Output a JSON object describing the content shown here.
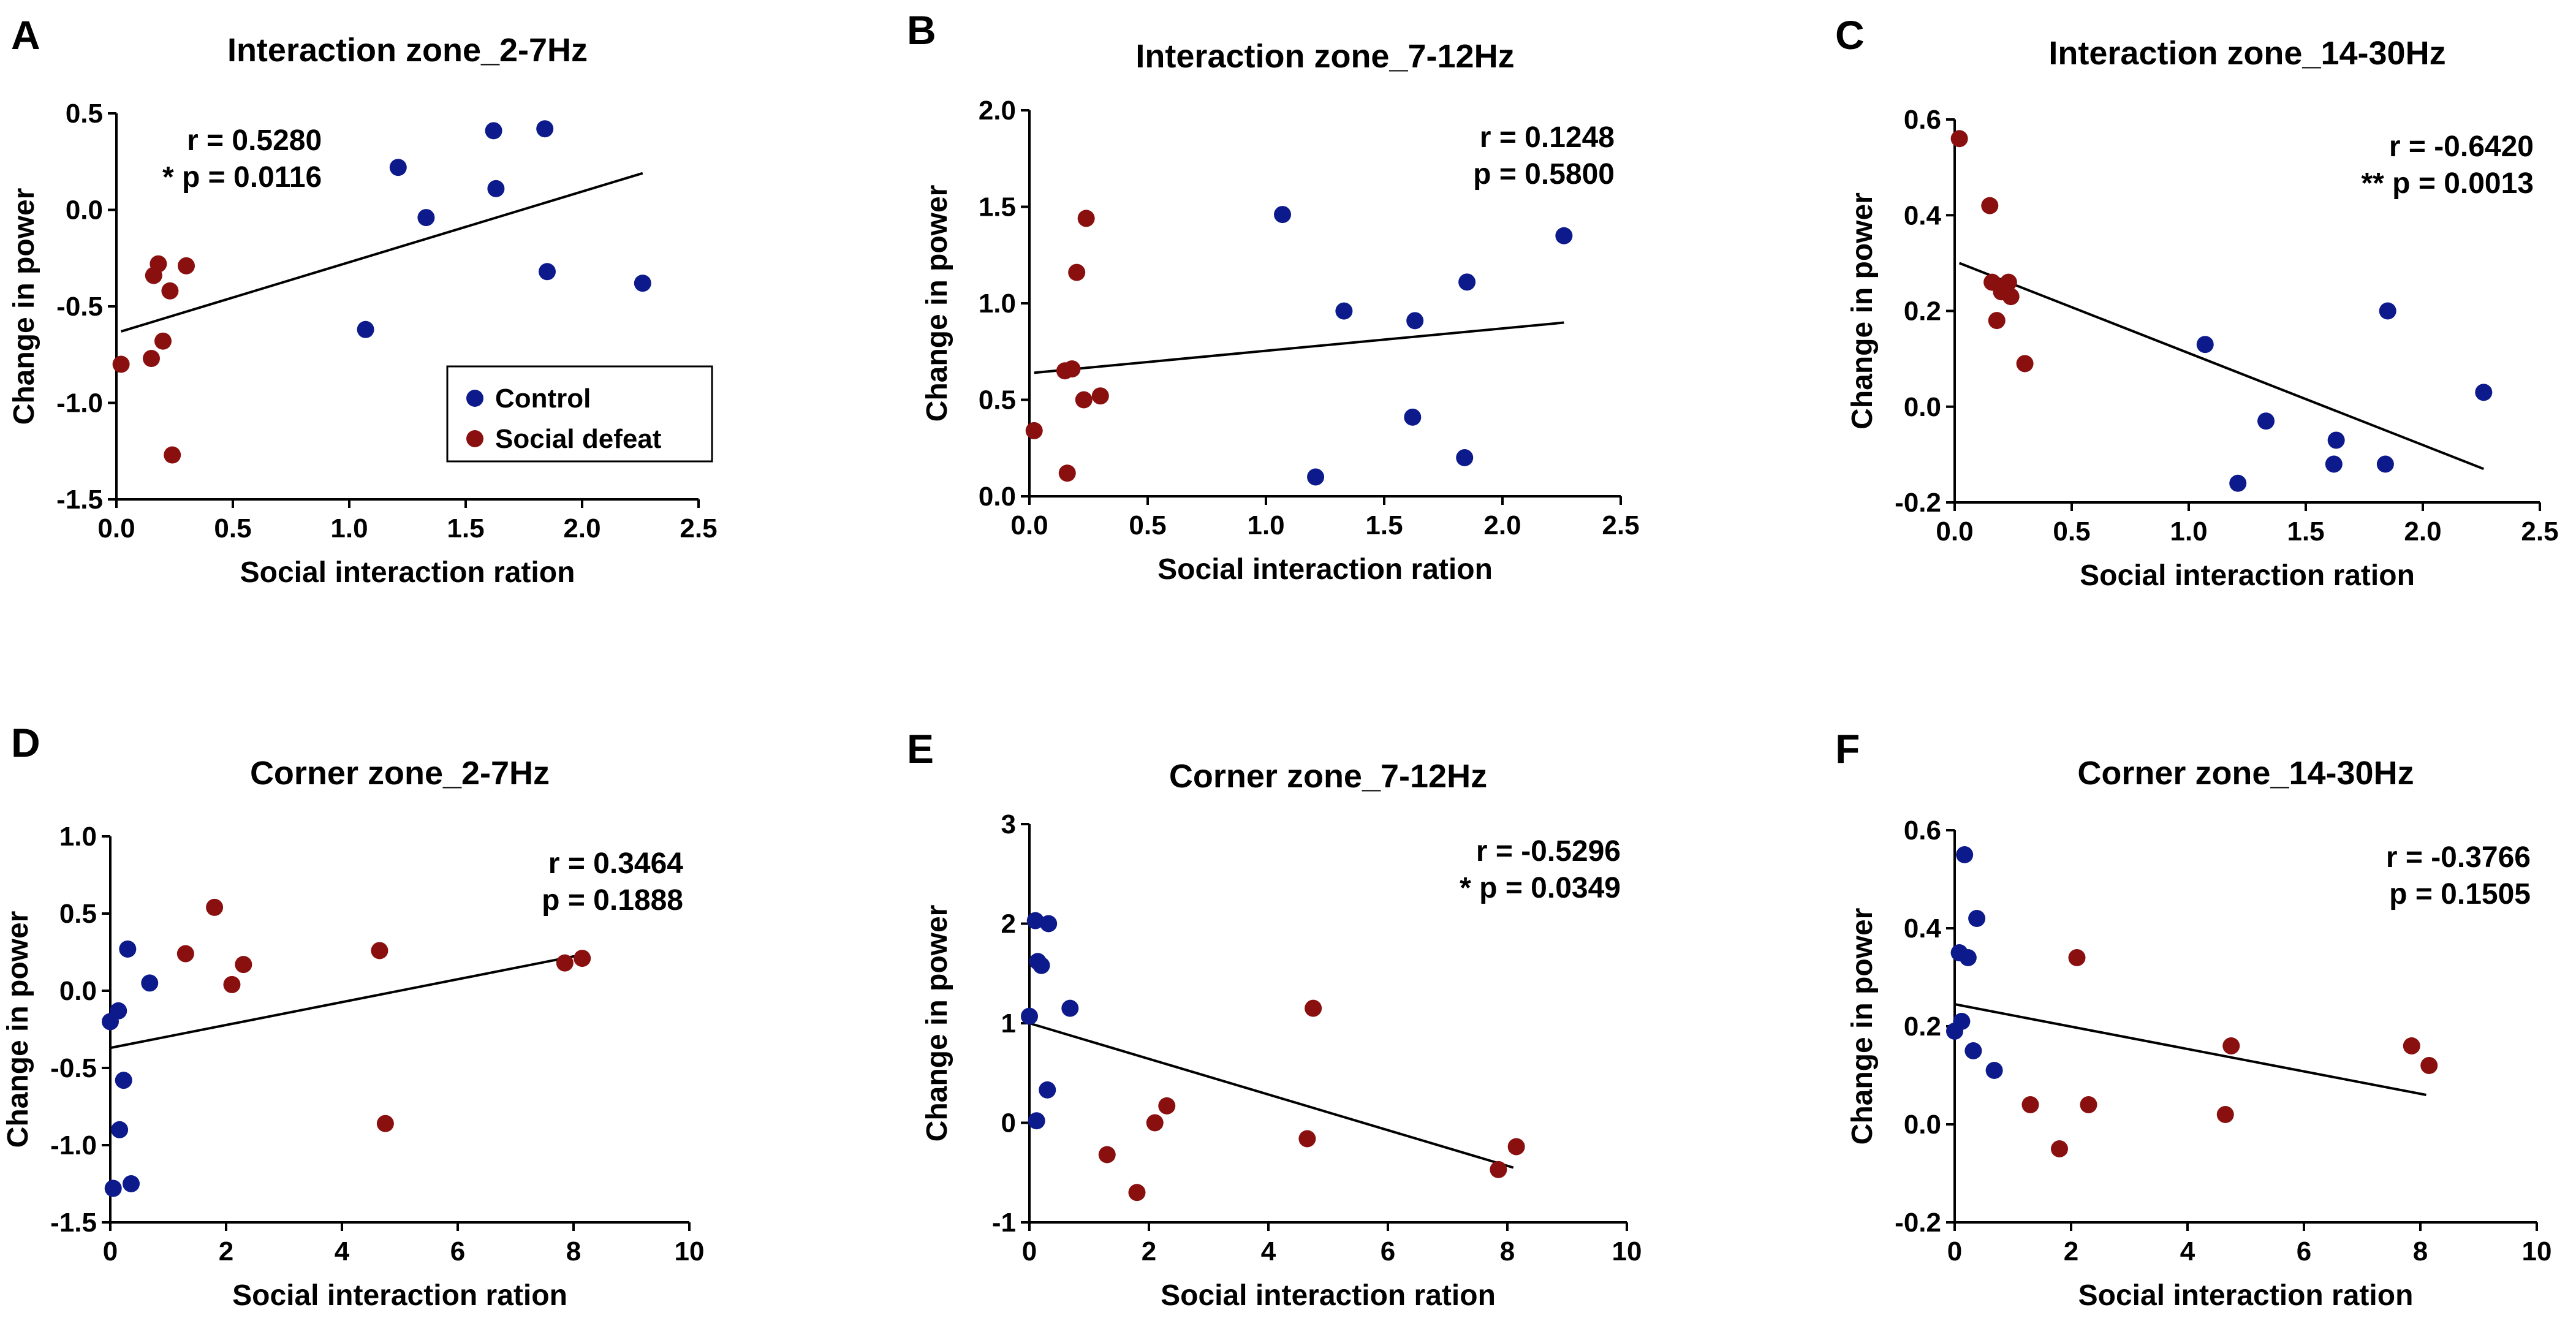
{
  "figure": {
    "series_colors": {
      "Control": "#0d1a8c",
      "Social defeat": "#8a1010"
    },
    "legend": {
      "items": [
        "Control",
        "Social defeat"
      ],
      "location": "lower-right of panel A"
    }
  },
  "chart_data": [
    {
      "panel": "A",
      "type": "scatter",
      "title": "Interaction zone_2-7Hz",
      "xlabel": "Social interaction  ration",
      "ylabel": "Change in power",
      "xlim": [
        0,
        2.5
      ],
      "ylim": [
        -1.5,
        0.5
      ],
      "xticks": [
        "0.0",
        "0.5",
        "1.0",
        "1.5",
        "2.0",
        "2.5"
      ],
      "xtick_values": [
        0,
        0.5,
        1,
        1.5,
        2,
        2.5
      ],
      "yticks": [
        "-1.5",
        "-1.0",
        "-0.5",
        "0.0",
        "0.5"
      ],
      "ytick_values": [
        -1.5,
        -1,
        -0.5,
        0,
        0.5
      ],
      "stats": {
        "r": "r = 0.5280",
        "p": "* p = 0.0116"
      },
      "stats_position": "top-left",
      "fit_line": {
        "x": [
          0.02,
          2.26
        ],
        "y": [
          -0.63,
          0.19
        ]
      },
      "series": [
        {
          "name": "Control",
          "x": [
            1.07,
            1.21,
            1.33,
            1.62,
            1.63,
            1.84,
            1.85,
            2.26
          ],
          "y": [
            -0.62,
            0.22,
            -0.04,
            0.41,
            0.11,
            0.42,
            -0.32,
            -0.38
          ]
        },
        {
          "name": "Social defeat",
          "x": [
            0.02,
            0.15,
            0.16,
            0.18,
            0.2,
            0.23,
            0.24,
            0.3
          ],
          "y": [
            -0.8,
            -0.77,
            -0.34,
            -0.28,
            -0.68,
            -0.42,
            -1.27,
            -0.29
          ]
        }
      ]
    },
    {
      "panel": "B",
      "type": "scatter",
      "title": "Interaction zone_7-12Hz",
      "xlabel": "Social interaction  ration",
      "ylabel": "Change in power",
      "xlim": [
        0,
        2.5
      ],
      "ylim": [
        0,
        2.0
      ],
      "xticks": [
        "0.0",
        "0.5",
        "1.0",
        "1.5",
        "2.0",
        "2.5"
      ],
      "xtick_values": [
        0,
        0.5,
        1,
        1.5,
        2,
        2.5
      ],
      "yticks": [
        "0.0",
        "0.5",
        "1.0",
        "1.5",
        "2.0"
      ],
      "ytick_values": [
        0,
        0.5,
        1,
        1.5,
        2
      ],
      "stats": {
        "r": "r = 0.1248",
        "p": "p = 0.5800"
      },
      "stats_position": "top-right",
      "fit_line": {
        "x": [
          0.02,
          2.26
        ],
        "y": [
          0.64,
          0.9
        ]
      },
      "series": [
        {
          "name": "Control",
          "x": [
            1.07,
            1.21,
            1.33,
            1.62,
            1.63,
            1.84,
            1.85,
            2.26
          ],
          "y": [
            1.46,
            0.1,
            0.96,
            0.41,
            0.91,
            0.2,
            1.11,
            1.35
          ]
        },
        {
          "name": "Social defeat",
          "x": [
            0.02,
            0.15,
            0.16,
            0.18,
            0.2,
            0.23,
            0.24,
            0.3
          ],
          "y": [
            0.34,
            0.65,
            0.12,
            0.66,
            1.16,
            0.5,
            1.44,
            0.52
          ]
        }
      ]
    },
    {
      "panel": "C",
      "type": "scatter",
      "title": "Interaction zone_14-30Hz",
      "xlabel": "Social interaction  ration",
      "ylabel": "Change in power",
      "xlim": [
        0,
        2.5
      ],
      "ylim": [
        -0.2,
        0.6
      ],
      "xticks": [
        "0.0",
        "0.5",
        "1.0",
        "1.5",
        "2.0",
        "2.5"
      ],
      "xtick_values": [
        0,
        0.5,
        1,
        1.5,
        2,
        2.5
      ],
      "yticks": [
        "-0.2",
        "0.0",
        "0.2",
        "0.4",
        "0.6"
      ],
      "ytick_values": [
        -0.2,
        0,
        0.2,
        0.4,
        0.6
      ],
      "stats": {
        "r": "r = -0.6420",
        "p": "** p = 0.0013"
      },
      "stats_position": "top-right",
      "fit_line": {
        "x": [
          0.02,
          2.26
        ],
        "y": [
          0.3,
          -0.13
        ]
      },
      "series": [
        {
          "name": "Control",
          "x": [
            1.07,
            1.21,
            1.33,
            1.62,
            1.63,
            1.84,
            1.85,
            2.26
          ],
          "y": [
            0.13,
            -0.16,
            -0.03,
            -0.12,
            -0.07,
            -0.12,
            0.2,
            0.03
          ]
        },
        {
          "name": "Social defeat",
          "x": [
            0.02,
            0.15,
            0.16,
            0.18,
            0.2,
            0.23,
            0.24,
            0.3
          ],
          "y": [
            0.56,
            0.42,
            0.26,
            0.18,
            0.24,
            0.26,
            0.23,
            0.09
          ]
        }
      ]
    },
    {
      "panel": "D",
      "type": "scatter",
      "title": "Corner zone_2-7Hz",
      "xlabel": "Social interaction  ration",
      "ylabel": "Change in power",
      "xlim": [
        0,
        10
      ],
      "ylim": [
        -1.5,
        1.0
      ],
      "xticks": [
        "0",
        "2",
        "4",
        "6",
        "8",
        "10"
      ],
      "xtick_values": [
        0,
        2,
        4,
        6,
        8,
        10
      ],
      "yticks": [
        "-1.5",
        "-1.0",
        "-0.5",
        "0.0",
        "0.5",
        "1.0"
      ],
      "ytick_values": [
        -1.5,
        -1,
        -0.5,
        0,
        0.5,
        1
      ],
      "stats": {
        "r": "r = 0.3464",
        "p": "p = 0.1888"
      },
      "stats_position": "top-right",
      "fit_line": {
        "x": [
          0.0,
          8.1
        ],
        "y": [
          -0.37,
          0.23
        ]
      },
      "series": [
        {
          "name": "Control",
          "x": [
            0.0,
            0.05,
            0.14,
            0.16,
            0.23,
            0.3,
            0.36,
            0.68
          ],
          "y": [
            -0.2,
            -1.28,
            -0.13,
            -0.9,
            -0.58,
            0.27,
            -1.25,
            0.05
          ]
        },
        {
          "name": "Social defeat",
          "x": [
            1.3,
            1.8,
            2.1,
            2.3,
            4.65,
            4.75,
            7.85,
            8.15
          ],
          "y": [
            0.24,
            0.54,
            0.04,
            0.17,
            0.26,
            -0.86,
            0.18,
            0.21
          ]
        }
      ]
    },
    {
      "panel": "E",
      "type": "scatter",
      "title": "Corner zone_7-12Hz",
      "xlabel": "Social interaction  ration",
      "ylabel": "Change in power",
      "xlim": [
        0,
        10
      ],
      "ylim": [
        -1,
        3
      ],
      "xticks": [
        "0",
        "2",
        "4",
        "6",
        "8",
        "10"
      ],
      "xtick_values": [
        0,
        2,
        4,
        6,
        8,
        10
      ],
      "yticks": [
        "-1",
        "0",
        "1",
        "2",
        "3"
      ],
      "ytick_values": [
        -1,
        0,
        1,
        2,
        3
      ],
      "stats": {
        "r": "r = -0.5296",
        "p": "* p = 0.0349"
      },
      "stats_position": "top-right",
      "fit_line": {
        "x": [
          0.0,
          8.1
        ],
        "y": [
          1.0,
          -0.45
        ]
      },
      "series": [
        {
          "name": "Control",
          "x": [
            0.0,
            0.1,
            0.14,
            0.2,
            0.3,
            0.32,
            0.68,
            0.12
          ],
          "y": [
            1.07,
            2.03,
            1.62,
            1.58,
            0.33,
            2.0,
            1.15,
            0.02
          ]
        },
        {
          "name": "Social defeat",
          "x": [
            1.3,
            1.8,
            2.1,
            2.3,
            4.65,
            4.75,
            7.85,
            8.15
          ],
          "y": [
            -0.32,
            -0.7,
            0.0,
            0.17,
            -0.16,
            1.15,
            -0.47,
            -0.24
          ]
        }
      ]
    },
    {
      "panel": "F",
      "type": "scatter",
      "title": "Corner zone_14-30Hz",
      "xlabel": "Social interaction  ration",
      "ylabel": "Change in power",
      "xlim": [
        0,
        10
      ],
      "ylim": [
        -0.2,
        0.6
      ],
      "xticks": [
        "0",
        "2",
        "4",
        "6",
        "8",
        "10"
      ],
      "xtick_values": [
        0,
        2,
        4,
        6,
        8,
        10
      ],
      "yticks": [
        "-0.2",
        "0.0",
        "0.2",
        "0.4",
        "0.6"
      ],
      "ytick_values": [
        -0.2,
        0,
        0.2,
        0.4,
        0.6
      ],
      "stats": {
        "r": "r = -0.3766",
        "p": "p = 0.1505"
      },
      "stats_position": "top-right",
      "fit_line": {
        "x": [
          0.0,
          8.1
        ],
        "y": [
          0.245,
          0.06
        ]
      },
      "series": [
        {
          "name": "Control",
          "x": [
            0.0,
            0.08,
            0.12,
            0.17,
            0.23,
            0.32,
            0.38,
            0.68
          ],
          "y": [
            0.19,
            0.35,
            0.21,
            0.55,
            0.34,
            0.15,
            0.42,
            0.11
          ]
        },
        {
          "name": "Social defeat",
          "x": [
            1.3,
            1.8,
            2.1,
            2.3,
            4.65,
            4.75,
            7.85,
            8.15
          ],
          "y": [
            0.04,
            -0.05,
            0.34,
            0.04,
            0.02,
            0.16,
            0.16,
            0.12
          ]
        }
      ]
    }
  ]
}
